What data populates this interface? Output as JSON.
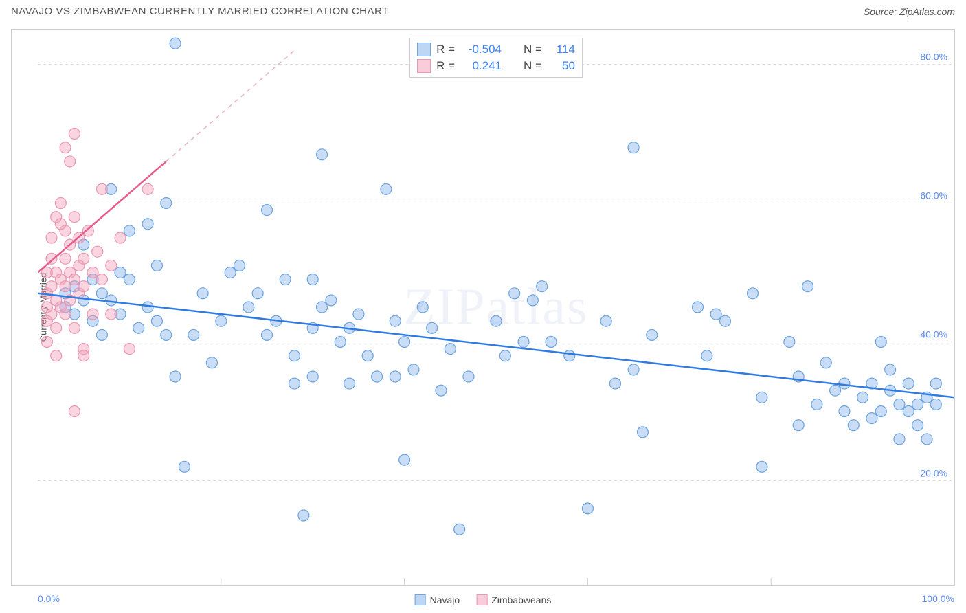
{
  "header": {
    "title": "NAVAJO VS ZIMBABWEAN CURRENTLY MARRIED CORRELATION CHART",
    "source_label": "Source:",
    "source_name": "ZipAtlas.com"
  },
  "watermark": "ZIPatlas",
  "chart": {
    "type": "scatter",
    "ylabel": "Currently Married",
    "xlim": [
      0,
      100
    ],
    "ylim": [
      5,
      85
    ],
    "yticks": [
      20,
      40,
      60,
      80
    ],
    "ytick_labels": [
      "20.0%",
      "40.0%",
      "60.0%",
      "80.0%"
    ],
    "xtick_labels": [
      "0.0%",
      "100.0%"
    ],
    "grid_color": "#dddddd",
    "axis_color": "#cccccc",
    "tick_color": "#cccccc",
    "label_color": "#5b8def",
    "marker_radius": 8,
    "marker_stroke_width": 1.2,
    "series": [
      {
        "name": "Navajo",
        "fill": "rgba(135,180,235,0.45)",
        "stroke": "#6aa3e0",
        "swatch_fill": "rgba(135,180,235,0.55)",
        "swatch_stroke": "#6aa3e0",
        "R": -0.504,
        "N": 114,
        "trend": {
          "x1": 0,
          "y1": 47,
          "x2": 100,
          "y2": 32,
          "color": "#2f7be0",
          "width": 2.5
        },
        "points": [
          [
            3,
            47
          ],
          [
            3,
            45
          ],
          [
            4,
            48
          ],
          [
            4,
            44
          ],
          [
            5,
            54
          ],
          [
            5,
            46
          ],
          [
            6,
            49
          ],
          [
            6,
            43
          ],
          [
            7,
            47
          ],
          [
            7,
            41
          ],
          [
            8,
            62
          ],
          [
            8,
            46
          ],
          [
            9,
            50
          ],
          [
            9,
            44
          ],
          [
            10,
            56
          ],
          [
            10,
            49
          ],
          [
            11,
            42
          ],
          [
            12,
            57
          ],
          [
            12,
            45
          ],
          [
            13,
            51
          ],
          [
            13,
            43
          ],
          [
            14,
            41
          ],
          [
            14,
            60
          ],
          [
            15,
            83
          ],
          [
            15,
            35
          ],
          [
            16,
            22
          ],
          [
            17,
            41
          ],
          [
            18,
            47
          ],
          [
            19,
            37
          ],
          [
            20,
            43
          ],
          [
            21,
            50
          ],
          [
            22,
            51
          ],
          [
            23,
            45
          ],
          [
            24,
            47
          ],
          [
            25,
            59
          ],
          [
            25,
            41
          ],
          [
            26,
            43
          ],
          [
            27,
            49
          ],
          [
            28,
            38
          ],
          [
            28,
            34
          ],
          [
            29,
            15
          ],
          [
            30,
            49
          ],
          [
            30,
            42
          ],
          [
            30,
            35
          ],
          [
            31,
            67
          ],
          [
            31,
            45
          ],
          [
            32,
            46
          ],
          [
            33,
            40
          ],
          [
            34,
            42
          ],
          [
            34,
            34
          ],
          [
            35,
            44
          ],
          [
            36,
            38
          ],
          [
            37,
            35
          ],
          [
            38,
            62
          ],
          [
            39,
            43
          ],
          [
            39,
            35
          ],
          [
            40,
            40
          ],
          [
            40,
            23
          ],
          [
            41,
            36
          ],
          [
            42,
            45
          ],
          [
            43,
            42
          ],
          [
            44,
            33
          ],
          [
            45,
            39
          ],
          [
            46,
            13
          ],
          [
            47,
            35
          ],
          [
            50,
            43
          ],
          [
            51,
            38
          ],
          [
            52,
            47
          ],
          [
            53,
            40
          ],
          [
            54,
            46
          ],
          [
            55,
            48
          ],
          [
            56,
            40
          ],
          [
            58,
            38
          ],
          [
            60,
            16
          ],
          [
            62,
            43
          ],
          [
            63,
            34
          ],
          [
            65,
            68
          ],
          [
            65,
            36
          ],
          [
            66,
            27
          ],
          [
            67,
            41
          ],
          [
            72,
            45
          ],
          [
            73,
            38
          ],
          [
            74,
            44
          ],
          [
            75,
            43
          ],
          [
            78,
            47
          ],
          [
            79,
            32
          ],
          [
            79,
            22
          ],
          [
            82,
            40
          ],
          [
            83,
            28
          ],
          [
            83,
            35
          ],
          [
            84,
            48
          ],
          [
            85,
            31
          ],
          [
            86,
            37
          ],
          [
            87,
            33
          ],
          [
            88,
            30
          ],
          [
            88,
            34
          ],
          [
            89,
            28
          ],
          [
            90,
            32
          ],
          [
            91,
            29
          ],
          [
            91,
            34
          ],
          [
            92,
            30
          ],
          [
            92,
            40
          ],
          [
            93,
            36
          ],
          [
            93,
            33
          ],
          [
            94,
            31
          ],
          [
            94,
            26
          ],
          [
            95,
            30
          ],
          [
            95,
            34
          ],
          [
            96,
            31
          ],
          [
            96,
            28
          ],
          [
            97,
            32
          ],
          [
            97,
            26
          ],
          [
            98,
            31
          ],
          [
            98,
            34
          ]
        ]
      },
      {
        "name": "Zimbabweans",
        "fill": "rgba(245,160,185,0.45)",
        "stroke": "#e896b3",
        "swatch_fill": "rgba(245,160,185,0.55)",
        "swatch_stroke": "#e896b3",
        "R": 0.241,
        "N": 50,
        "trend": {
          "x1": 0,
          "y1": 50,
          "x2": 14,
          "y2": 66,
          "color": "#e75c8c",
          "width": 2.5
        },
        "dashed_trend": {
          "x1": 14,
          "y1": 66,
          "x2": 28,
          "y2": 82,
          "color": "#e8b0c2",
          "width": 1.5
        },
        "points": [
          [
            1,
            47
          ],
          [
            1,
            45
          ],
          [
            1,
            50
          ],
          [
            1,
            43
          ],
          [
            1,
            40
          ],
          [
            1.5,
            48
          ],
          [
            1.5,
            52
          ],
          [
            1.5,
            44
          ],
          [
            1.5,
            55
          ],
          [
            2,
            58
          ],
          [
            2,
            50
          ],
          [
            2,
            46
          ],
          [
            2,
            42
          ],
          [
            2,
            38
          ],
          [
            2.5,
            57
          ],
          [
            2.5,
            49
          ],
          [
            2.5,
            45
          ],
          [
            2.5,
            60
          ],
          [
            3,
            56
          ],
          [
            3,
            48
          ],
          [
            3,
            52
          ],
          [
            3,
            44
          ],
          [
            3,
            68
          ],
          [
            3.5,
            66
          ],
          [
            3.5,
            54
          ],
          [
            3.5,
            50
          ],
          [
            3.5,
            46
          ],
          [
            4,
            70
          ],
          [
            4,
            58
          ],
          [
            4,
            49
          ],
          [
            4,
            42
          ],
          [
            4,
            30
          ],
          [
            4.5,
            55
          ],
          [
            4.5,
            51
          ],
          [
            4.5,
            47
          ],
          [
            5,
            52
          ],
          [
            5,
            39
          ],
          [
            5,
            48
          ],
          [
            5,
            38
          ],
          [
            5.5,
            56
          ],
          [
            6,
            50
          ],
          [
            6,
            44
          ],
          [
            6.5,
            53
          ],
          [
            7,
            49
          ],
          [
            7,
            62
          ],
          [
            8,
            44
          ],
          [
            8,
            51
          ],
          [
            9,
            55
          ],
          [
            10,
            39
          ],
          [
            12,
            62
          ]
        ]
      }
    ]
  },
  "legend_stats": {
    "rows": [
      {
        "series_idx": 0,
        "R_label": "R =",
        "N_label": "N ="
      },
      {
        "series_idx": 1,
        "R_label": "R =",
        "N_label": "N ="
      }
    ]
  }
}
